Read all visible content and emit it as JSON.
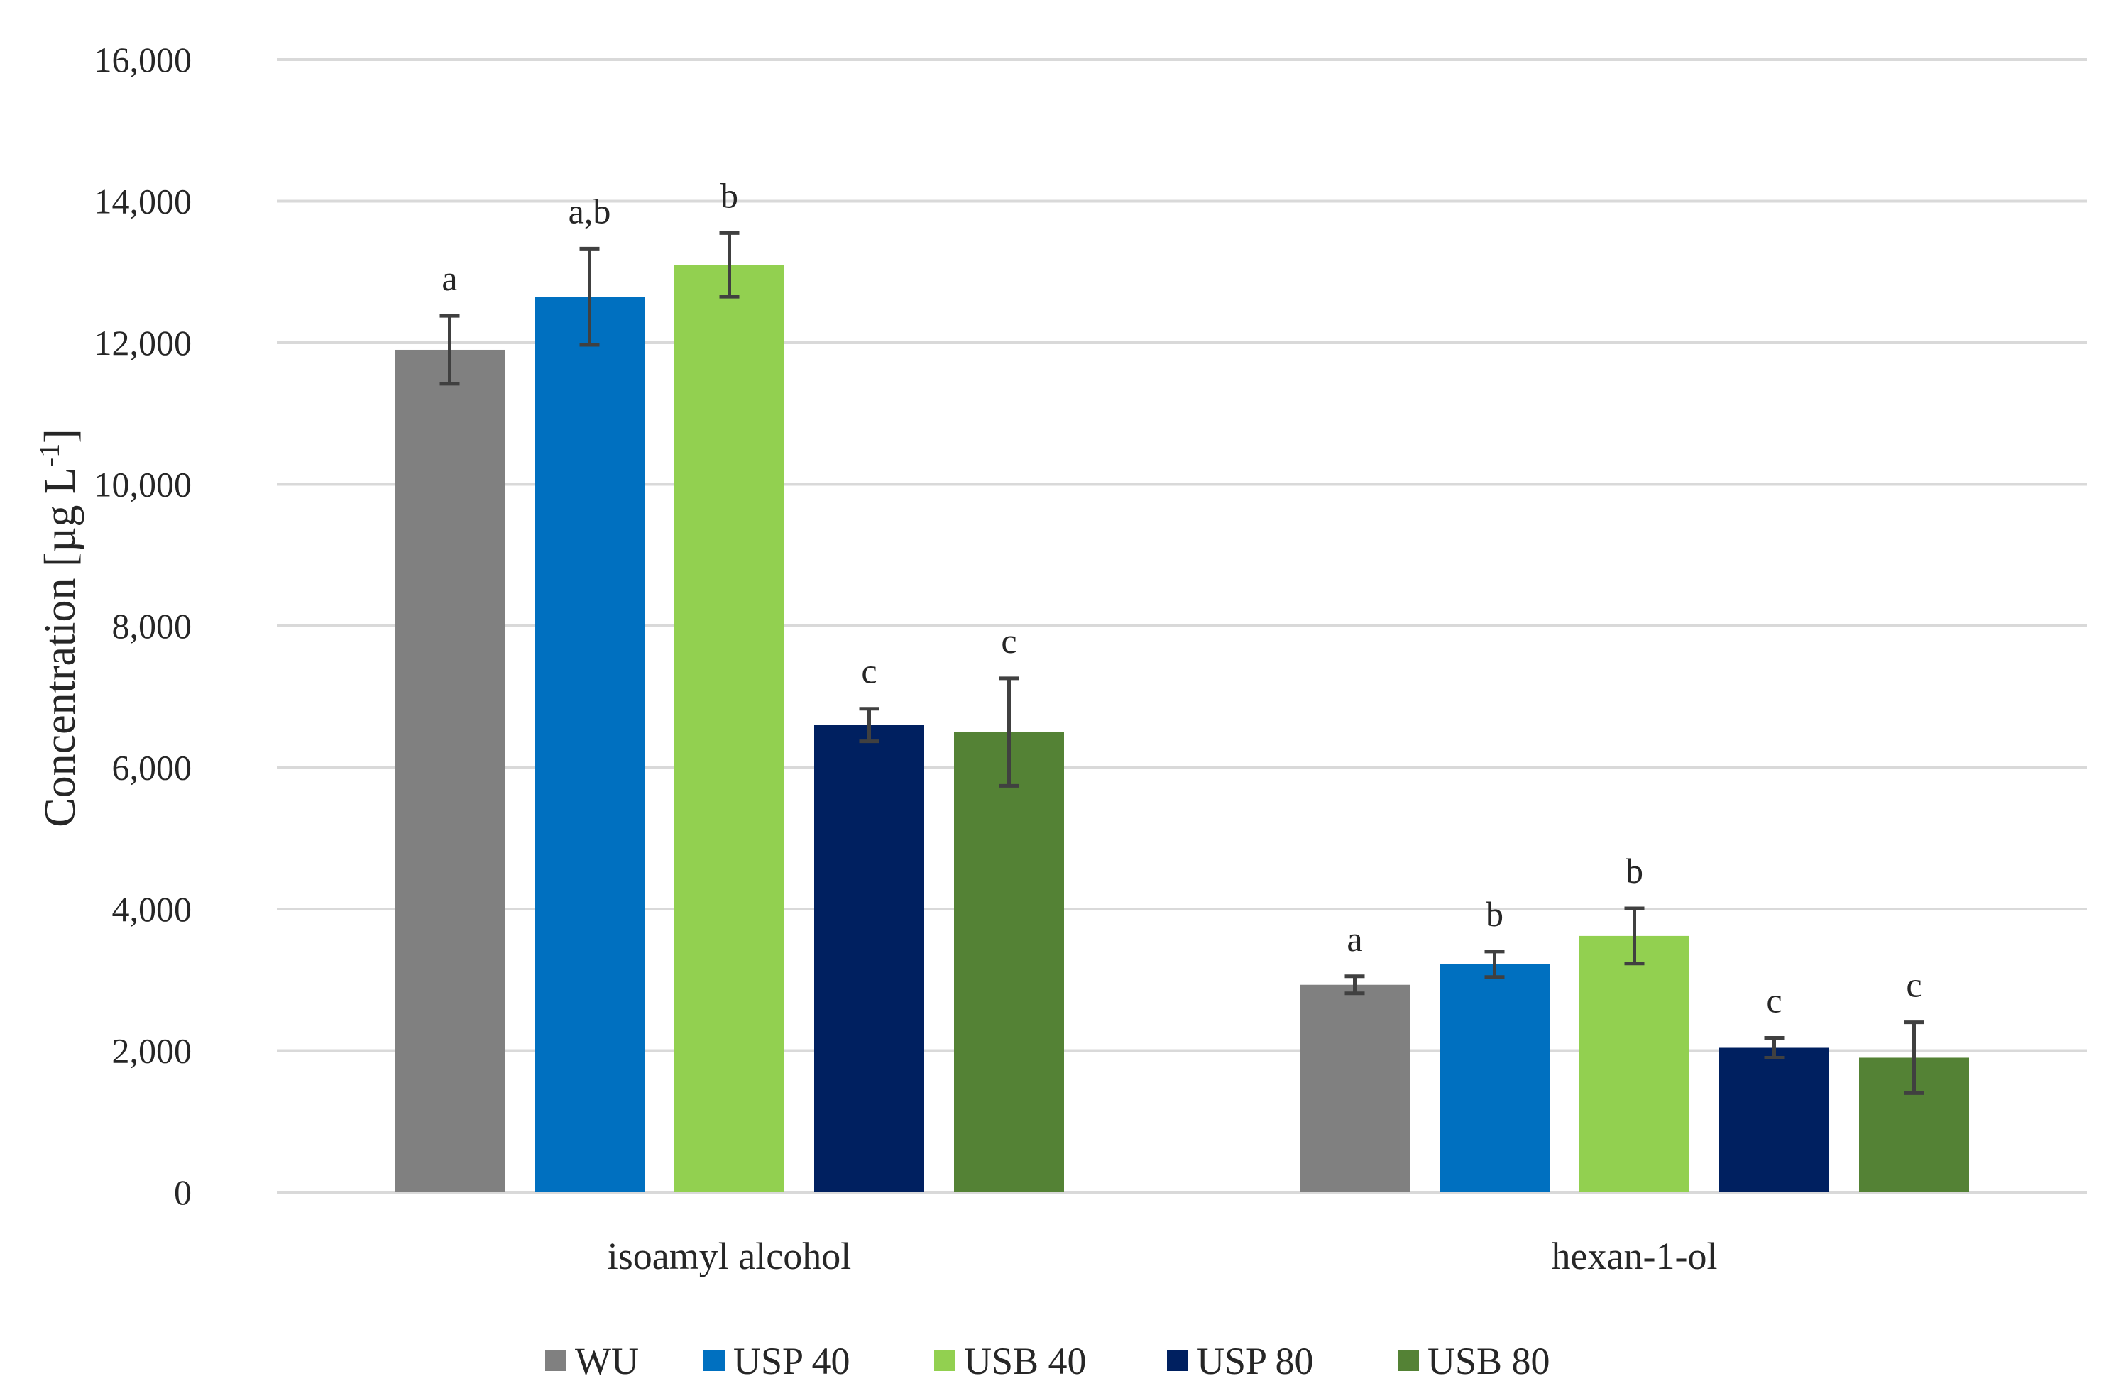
{
  "chart_data": {
    "type": "bar",
    "title": "",
    "xlabel": "",
    "ylabel": "Concentration [µg L",
    "ylabel_sup": "-1",
    "ylabel_close": "]",
    "ylim": [
      0,
      16000
    ],
    "yticks": [
      0,
      2000,
      4000,
      6000,
      8000,
      10000,
      12000,
      14000,
      16000
    ],
    "ytick_labels": [
      "0",
      "2,000",
      "4,000",
      "6,000",
      "8,000",
      "10,000",
      "12,000",
      "14,000",
      "16,000"
    ],
    "grid": true,
    "legend_position": "bottom",
    "categories": [
      "isoamyl alcohol",
      "hexan-1-ol"
    ],
    "series": [
      {
        "name": "WU",
        "color": "#808080",
        "values": [
          11900,
          2930
        ],
        "errors": [
          480,
          120
        ],
        "letters": [
          "a",
          "a"
        ]
      },
      {
        "name": "USP 40",
        "color": "#0070C0",
        "values": [
          12650,
          3220
        ],
        "errors": [
          680,
          180
        ],
        "letters": [
          "a,b",
          "b"
        ]
      },
      {
        "name": "USB 40",
        "color": "#92D050",
        "values": [
          13100,
          3620
        ],
        "errors": [
          450,
          390
        ],
        "letters": [
          "b",
          "b"
        ]
      },
      {
        "name": "USP 80",
        "color": "#002060",
        "values": [
          6600,
          2040
        ],
        "errors": [
          230,
          140
        ],
        "letters": [
          "c",
          "c"
        ]
      },
      {
        "name": "USB 80",
        "color": "#548235",
        "values": [
          6500,
          1900
        ],
        "errors": [
          760,
          500
        ],
        "letters": [
          "c",
          "c"
        ]
      }
    ]
  }
}
